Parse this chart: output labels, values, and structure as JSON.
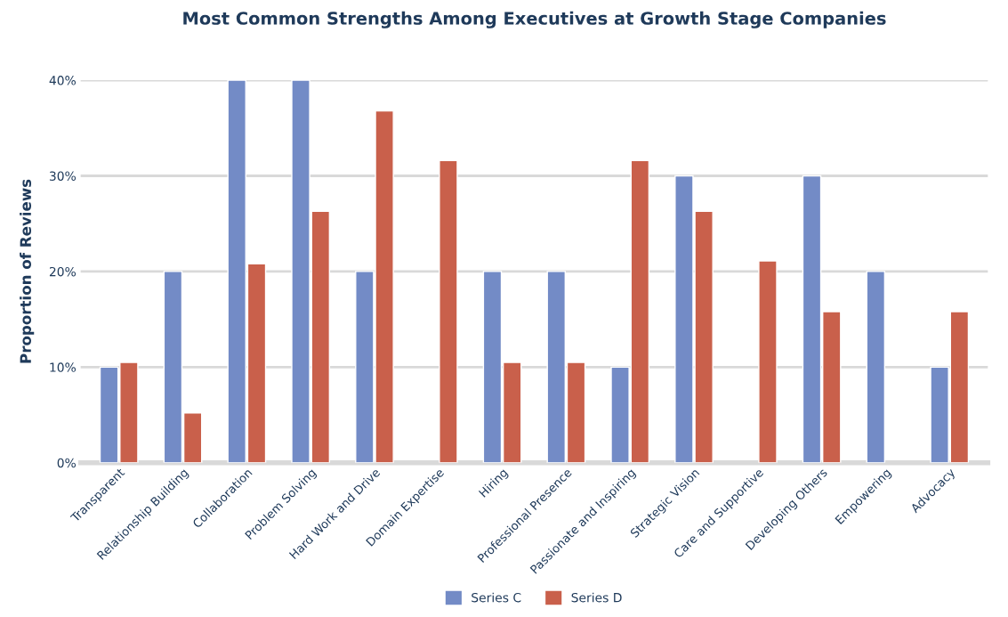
{
  "chart_data": {
    "type": "bar",
    "title": "Most Common Strengths Among Executives at Growth Stage Companies",
    "ylabel": "Proportion of Reviews",
    "categories": [
      "Transparent",
      "Relationship Building",
      "Collaboration",
      "Problem Solving",
      "Hard Work and Drive",
      "Domain Expertise",
      "Hiring",
      "Professional Presence",
      "Passionate and Inspiring",
      "Strategic Vision",
      "Care and Supportive",
      "Developing Others",
      "Empowering",
      "Advocacy"
    ],
    "series": [
      {
        "name": "Series C",
        "color": "#738bc6",
        "values": [
          10,
          20,
          40,
          40,
          20,
          null,
          20,
          20,
          10,
          30,
          null,
          30,
          20,
          10
        ]
      },
      {
        "name": "Series D",
        "color": "#c9604b",
        "values": [
          10.5,
          5.2,
          20.8,
          26.3,
          36.8,
          31.6,
          10.5,
          10.5,
          31.6,
          26.3,
          21.1,
          15.8,
          null,
          15.8
        ]
      }
    ],
    "ylim": [
      0,
      40
    ],
    "yticks": [
      {
        "value": 0,
        "label": "0%"
      },
      {
        "value": 10,
        "label": "10%"
      },
      {
        "value": 20,
        "label": "20%"
      },
      {
        "value": 30,
        "label": "30%"
      },
      {
        "value": 40,
        "label": "40%"
      }
    ],
    "grid": "y",
    "legend": "bottom"
  }
}
